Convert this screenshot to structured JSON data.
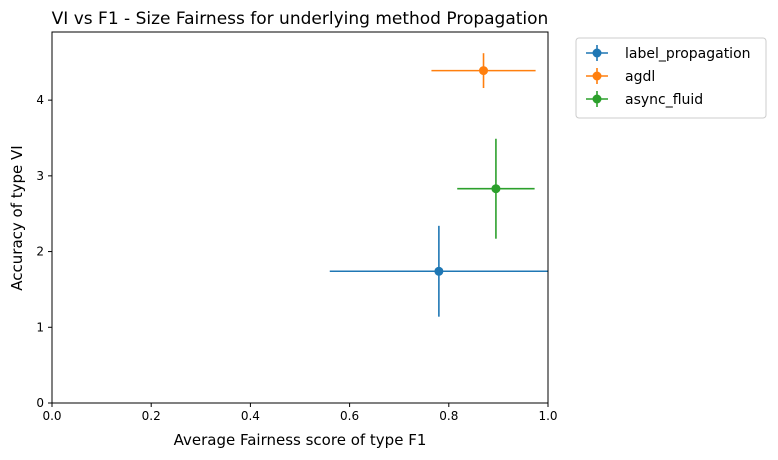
{
  "chart_data": {
    "type": "scatter",
    "title": "VI vs F1 - Size Fairness for underlying method Propagation",
    "xlabel": "Average Fairness score of type F1",
    "ylabel": "Accuracy of type VI",
    "xlim": [
      0,
      1.0
    ],
    "ylim": [
      0,
      4.9
    ],
    "xticks": [
      "0.0",
      "0.2",
      "0.4",
      "0.6",
      "0.8",
      "1.0"
    ],
    "yticks": [
      "0",
      "1",
      "2",
      "3",
      "4"
    ],
    "grid": false,
    "legend_position": "outside-top-right",
    "series": [
      {
        "name": "label_propagation",
        "color": "#1f77b4",
        "x": 0.78,
        "y": 1.74,
        "xerr": 0.22,
        "yerr": 0.6
      },
      {
        "name": "agdl",
        "color": "#ff7f0e",
        "x": 0.87,
        "y": 4.39,
        "xerr": 0.105,
        "yerr": 0.23
      },
      {
        "name": "async_fluid",
        "color": "#2ca02c",
        "x": 0.895,
        "y": 2.83,
        "xerr": 0.078,
        "yerr": 0.66
      }
    ]
  }
}
